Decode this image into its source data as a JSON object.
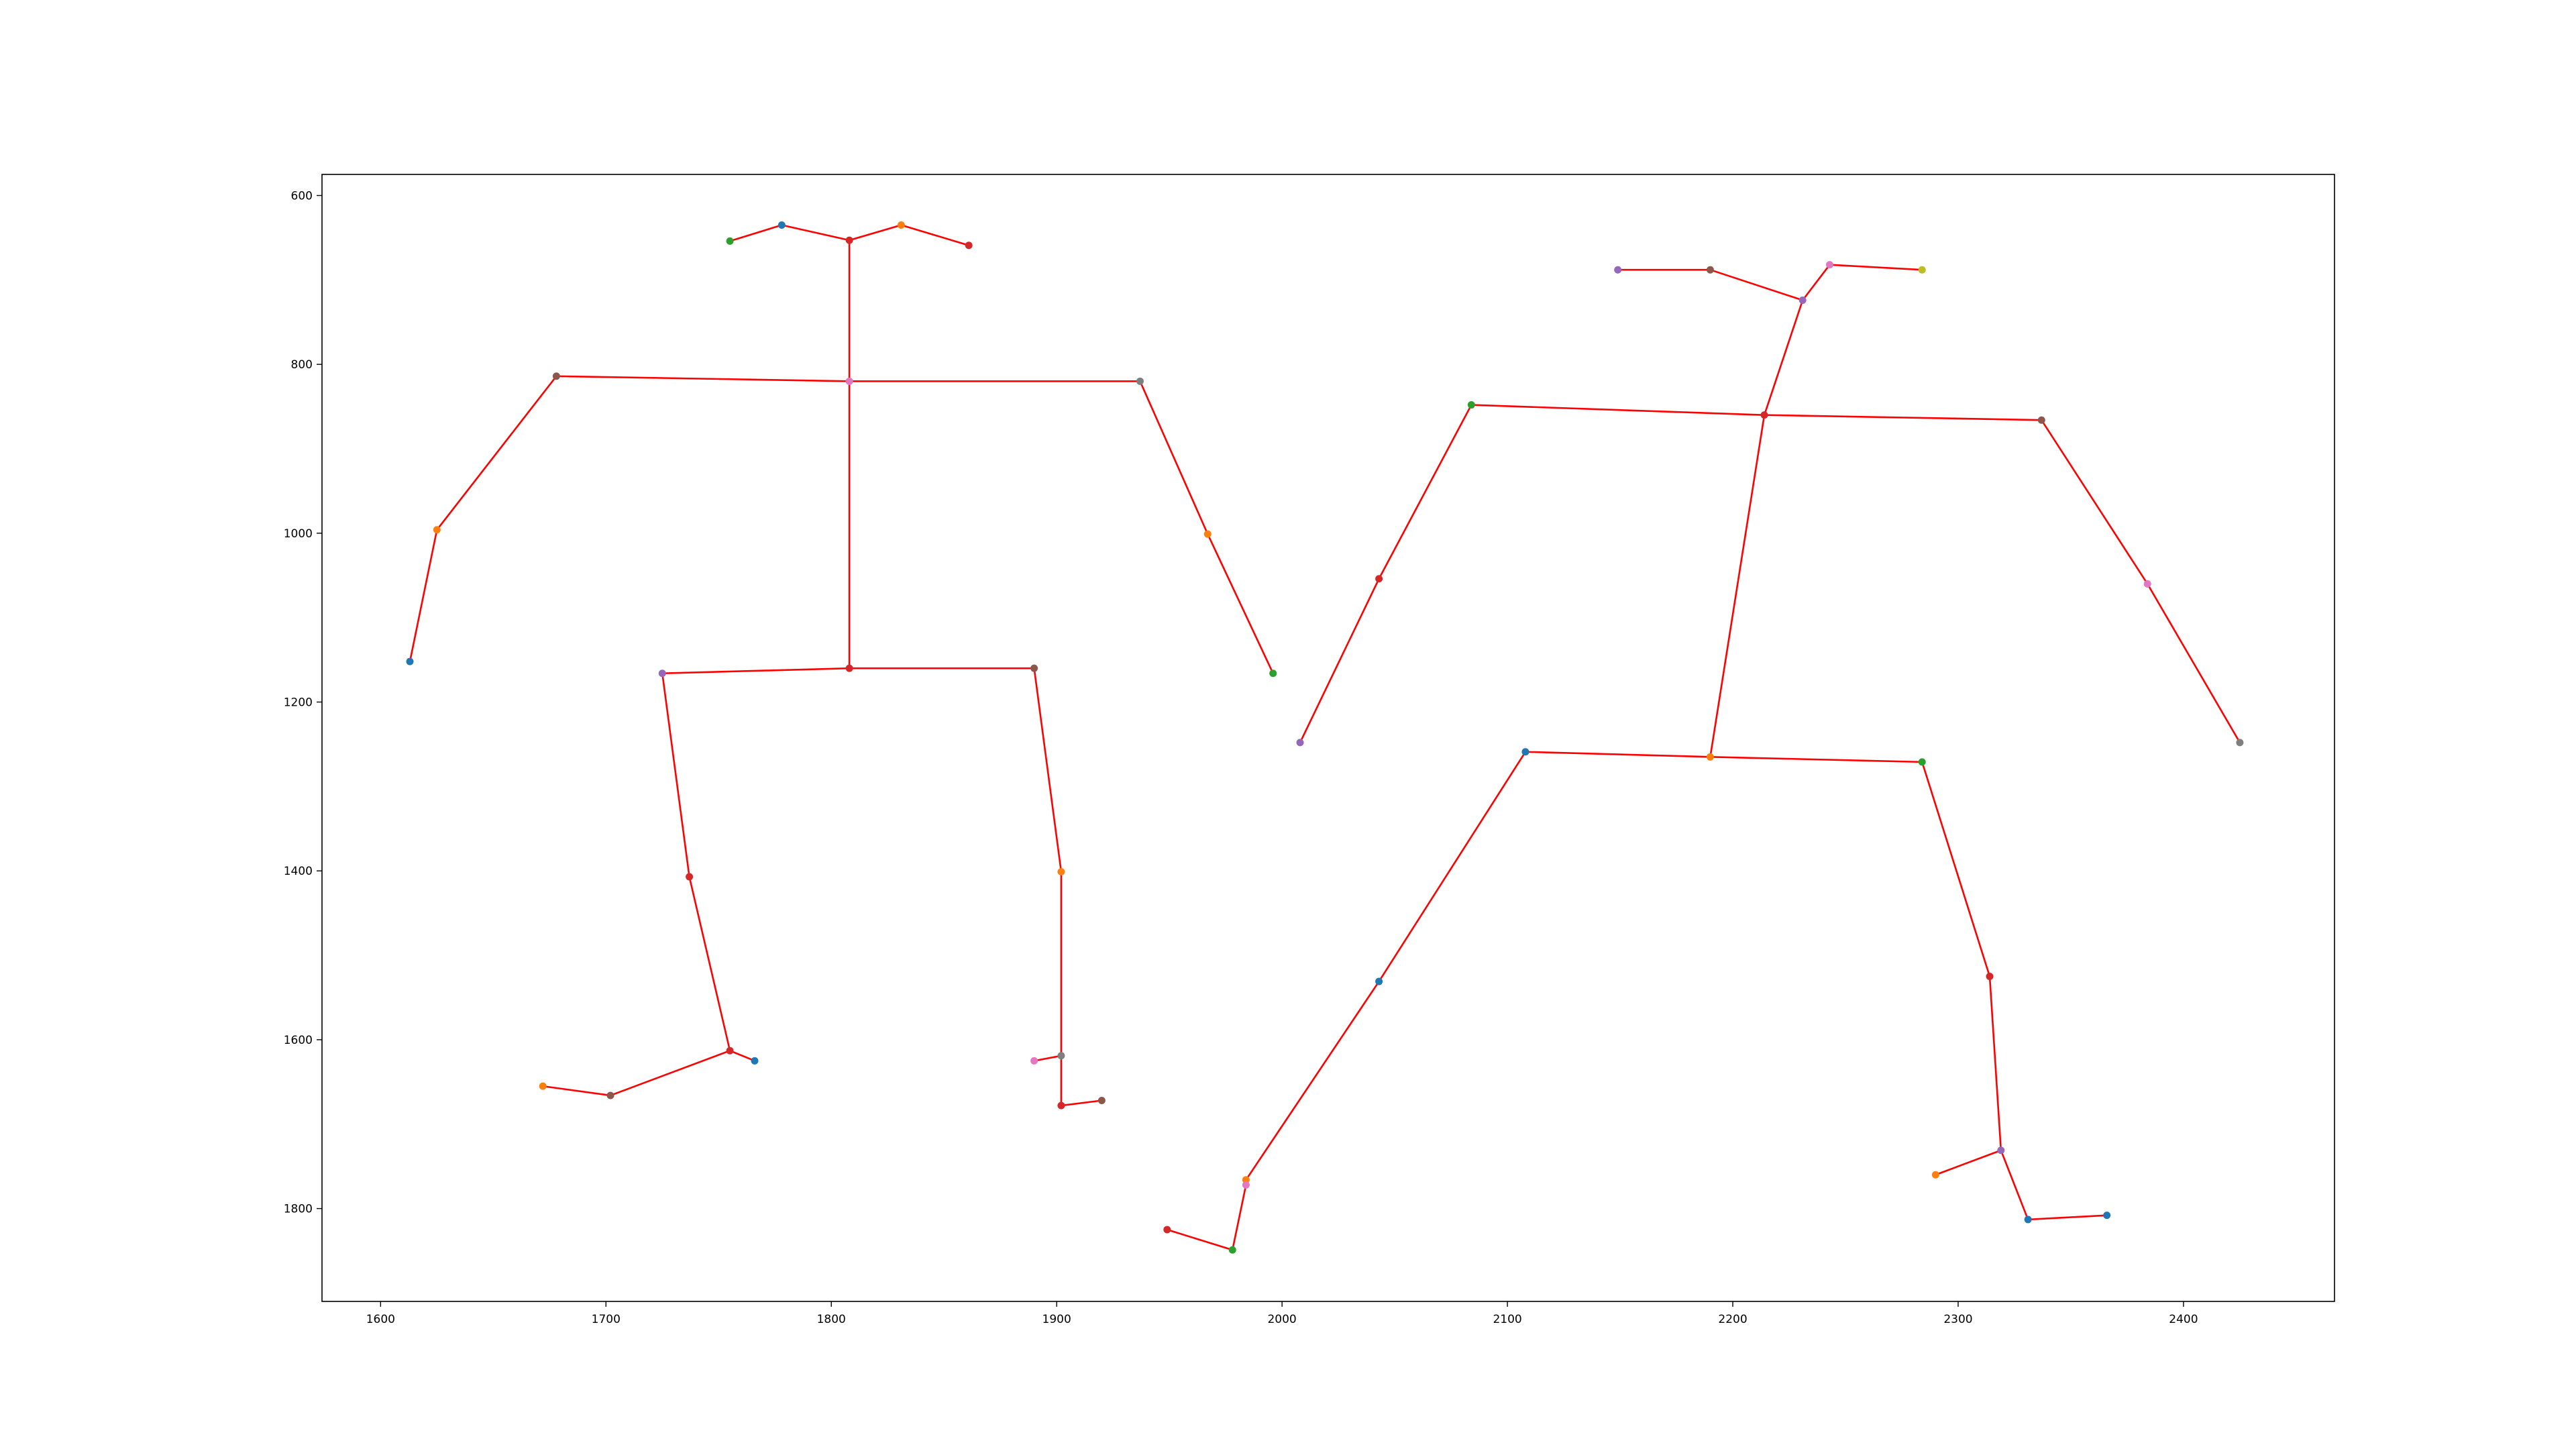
{
  "chart_data": {
    "type": "scatter",
    "title": "",
    "xlabel": "",
    "ylabel": "",
    "xlim": [
      1574,
      2467
    ],
    "ylim": [
      1910,
      575
    ],
    "y_inverted": true,
    "grid": false,
    "legend": "none",
    "line_color": "#ff0000",
    "x_ticks": [
      1600,
      1700,
      1800,
      1900,
      2000,
      2100,
      2200,
      2300,
      2400
    ],
    "y_ticks": [
      600,
      800,
      1000,
      1200,
      1400,
      1600,
      1800
    ],
    "x_tick_labels": [
      "1600",
      "1700",
      "1800",
      "1900",
      "2000",
      "2100",
      "2200",
      "2300",
      "2400"
    ],
    "y_tick_labels": [
      "600",
      "800",
      "1000",
      "1200",
      "1400",
      "1600",
      "1800"
    ],
    "skeletons": [
      {
        "points": [
          {
            "x": 1808,
            "y": 653,
            "color": "#d62728"
          },
          {
            "x": 1755,
            "y": 654,
            "color": "#2ca02c"
          },
          {
            "x": 1778,
            "y": 635,
            "color": "#1f77b4"
          },
          {
            "x": 1831,
            "y": 635,
            "color": "#ff7f0e"
          },
          {
            "x": 1861,
            "y": 659,
            "color": "#d62728"
          },
          {
            "x": 1808,
            "y": 820,
            "color": "#e377c2"
          },
          {
            "x": 1678,
            "y": 814,
            "color": "#8c564b"
          },
          {
            "x": 1625,
            "y": 996,
            "color": "#ff7f0e"
          },
          {
            "x": 1613,
            "y": 1152,
            "color": "#1f77b4"
          },
          {
            "x": 1937,
            "y": 820,
            "color": "#7f7f7f"
          },
          {
            "x": 1967,
            "y": 1001,
            "color": "#ff7f0e"
          },
          {
            "x": 1996,
            "y": 1166,
            "color": "#2ca02c"
          },
          {
            "x": 1808,
            "y": 1160,
            "color": "#d62728"
          },
          {
            "x": 1725,
            "y": 1166,
            "color": "#9467bd"
          },
          {
            "x": 1737,
            "y": 1407,
            "color": "#d62728"
          },
          {
            "x": 1755,
            "y": 1613,
            "color": "#d62728"
          },
          {
            "x": 1766,
            "y": 1625,
            "color": "#1f77b4"
          },
          {
            "x": 1702,
            "y": 1666,
            "color": "#8c564b"
          },
          {
            "x": 1672,
            "y": 1655,
            "color": "#ff7f0e"
          },
          {
            "x": 1890,
            "y": 1160,
            "color": "#8c564b"
          },
          {
            "x": 1902,
            "y": 1401,
            "color": "#ff7f0e"
          },
          {
            "x": 1902,
            "y": 1619,
            "color": "#7f7f7f"
          },
          {
            "x": 1890,
            "y": 1625,
            "color": "#e377c2"
          },
          {
            "x": 1902,
            "y": 1678,
            "color": "#d62728"
          },
          {
            "x": 1920,
            "y": 1672,
            "color": "#8c564b"
          }
        ],
        "edges": [
          [
            1,
            2
          ],
          [
            2,
            0
          ],
          [
            0,
            3
          ],
          [
            3,
            4
          ],
          [
            0,
            5
          ],
          [
            6,
            5
          ],
          [
            5,
            9
          ],
          [
            6,
            7
          ],
          [
            7,
            8
          ],
          [
            9,
            10
          ],
          [
            10,
            11
          ],
          [
            5,
            12
          ],
          [
            13,
            12
          ],
          [
            12,
            19
          ],
          [
            13,
            14
          ],
          [
            14,
            15
          ],
          [
            15,
            16
          ],
          [
            15,
            17
          ],
          [
            17,
            18
          ],
          [
            19,
            20
          ],
          [
            20,
            21
          ],
          [
            21,
            22
          ],
          [
            21,
            23
          ],
          [
            23,
            24
          ]
        ]
      },
      {
        "points": [
          {
            "x": 2231,
            "y": 724,
            "color": "#9467bd"
          },
          {
            "x": 2149,
            "y": 688,
            "color": "#9467bd"
          },
          {
            "x": 2190,
            "y": 688,
            "color": "#8c564b"
          },
          {
            "x": 2243,
            "y": 682,
            "color": "#e377c2"
          },
          {
            "x": 2284,
            "y": 688,
            "color": "#bcbd22"
          },
          {
            "x": 2214,
            "y": 860,
            "color": "#d62728"
          },
          {
            "x": 2084,
            "y": 848,
            "color": "#2ca02c"
          },
          {
            "x": 2043,
            "y": 1054,
            "color": "#d62728"
          },
          {
            "x": 2008,
            "y": 1248,
            "color": "#9467bd"
          },
          {
            "x": 2337,
            "y": 866,
            "color": "#8c564b"
          },
          {
            "x": 2384,
            "y": 1060,
            "color": "#e377c2"
          },
          {
            "x": 2425,
            "y": 1248,
            "color": "#7f7f7f"
          },
          {
            "x": 2190,
            "y": 1265,
            "color": "#ff7f0e"
          },
          {
            "x": 2108,
            "y": 1259,
            "color": "#1f77b4"
          },
          {
            "x": 2043,
            "y": 1531,
            "color": "#1f77b4"
          },
          {
            "x": 1984,
            "y": 1766,
            "color": "#ff7f0e"
          },
          {
            "x": 1984,
            "y": 1772,
            "color": "#e377c2"
          },
          {
            "x": 1978,
            "y": 1849,
            "color": "#2ca02c"
          },
          {
            "x": 1949,
            "y": 1825,
            "color": "#d62728"
          },
          {
            "x": 2284,
            "y": 1271,
            "color": "#2ca02c"
          },
          {
            "x": 2314,
            "y": 1525,
            "color": "#d62728"
          },
          {
            "x": 2319,
            "y": 1731,
            "color": "#9467bd"
          },
          {
            "x": 2290,
            "y": 1760,
            "color": "#ff7f0e"
          },
          {
            "x": 2331,
            "y": 1813,
            "color": "#1f77b4"
          },
          {
            "x": 2366,
            "y": 1808,
            "color": "#1f77b4"
          }
        ],
        "edges": [
          [
            1,
            2
          ],
          [
            2,
            0
          ],
          [
            0,
            3
          ],
          [
            3,
            4
          ],
          [
            0,
            5
          ],
          [
            6,
            5
          ],
          [
            5,
            9
          ],
          [
            6,
            7
          ],
          [
            7,
            8
          ],
          [
            9,
            10
          ],
          [
            10,
            11
          ],
          [
            5,
            12
          ],
          [
            13,
            12
          ],
          [
            12,
            19
          ],
          [
            13,
            14
          ],
          [
            14,
            15
          ],
          [
            15,
            16
          ],
          [
            16,
            17
          ],
          [
            17,
            18
          ],
          [
            19,
            20
          ],
          [
            20,
            21
          ],
          [
            21,
            22
          ],
          [
            21,
            23
          ],
          [
            23,
            24
          ]
        ]
      }
    ]
  }
}
